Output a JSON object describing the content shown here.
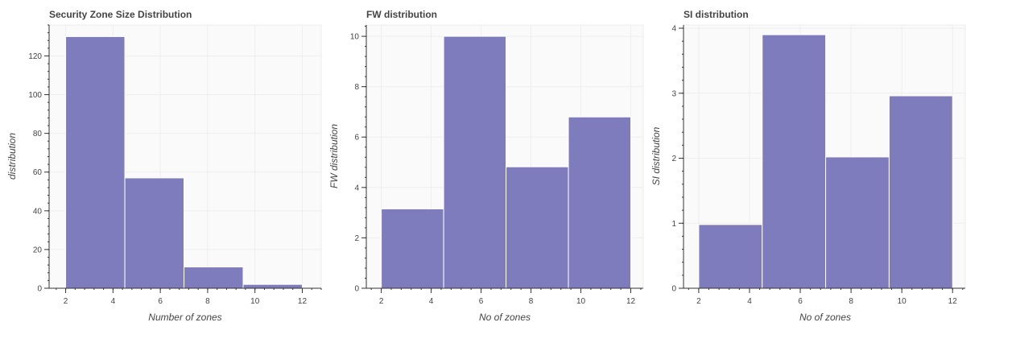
{
  "charts": [
    {
      "id": "sz",
      "chart_data": {
        "type": "bar",
        "title": "Security Zone Size Distribution",
        "xlabel": "Number of zones",
        "ylabel": "distribution",
        "bins": [
          [
            2,
            4.5
          ],
          [
            4.5,
            7
          ],
          [
            7,
            9.5
          ],
          [
            9.5,
            12
          ]
        ],
        "values": [
          130,
          57,
          11,
          2
        ],
        "xlim": [
          1.3,
          12.8
        ],
        "ylim": [
          0,
          136
        ],
        "x_ticks": [
          2,
          4,
          6,
          8,
          10,
          12
        ],
        "y_ticks": [
          0,
          20,
          40,
          60,
          80,
          100,
          120
        ],
        "y_minor_step": 4,
        "bar_color": "#7b78bc",
        "grid": true
      }
    },
    {
      "id": "fw",
      "chart_data": {
        "type": "bar",
        "title": "FW distribution",
        "xlabel": "No of zones",
        "ylabel": "FW distribution",
        "bins": [
          [
            2,
            4.5
          ],
          [
            4.5,
            7
          ],
          [
            7,
            9.5
          ],
          [
            9.5,
            12
          ]
        ],
        "values": [
          3.15,
          10,
          4.82,
          6.8
        ],
        "xlim": [
          1.4,
          12.5
        ],
        "ylim": [
          0,
          10.45
        ],
        "x_ticks": [
          2,
          4,
          6,
          8,
          10,
          12
        ],
        "y_ticks": [
          0,
          2,
          4,
          6,
          8,
          10
        ],
        "y_minor_step": 0.4,
        "bar_color": "#7b78bc",
        "grid": true
      }
    },
    {
      "id": "si",
      "chart_data": {
        "type": "bar",
        "title": "SI distribution",
        "xlabel": "No of zones",
        "ylabel": "SI distribution",
        "bins": [
          [
            2,
            4.5
          ],
          [
            4.5,
            7
          ],
          [
            7,
            9.5
          ],
          [
            9.5,
            12
          ]
        ],
        "values": [
          0.98,
          3.9,
          2.02,
          2.96
        ],
        "xlim": [
          1.4,
          12.5
        ],
        "ylim": [
          0,
          4.05
        ],
        "x_ticks": [
          2,
          4,
          6,
          8,
          10,
          12
        ],
        "y_ticks": [
          0,
          1,
          2,
          3,
          4
        ],
        "y_minor_step": 0.2,
        "bar_color": "#7b78bc",
        "grid": true
      }
    }
  ]
}
